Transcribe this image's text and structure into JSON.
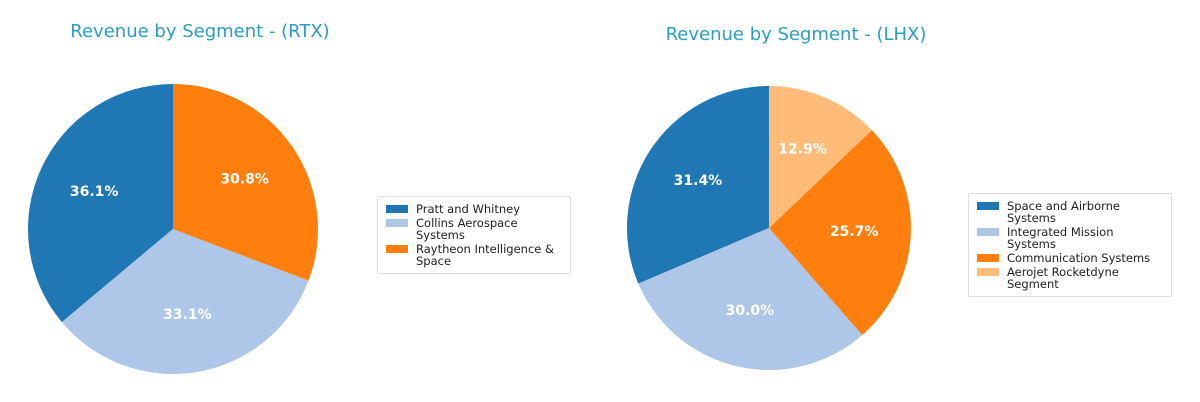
{
  "chart_data": [
    {
      "type": "pie",
      "title": "Revenue by Segment - (RTX)",
      "categories": [
        "Pratt and Whitney",
        "Collins Aerospace Systems",
        "Raytheon Intelligence & Space"
      ],
      "values": [
        36.1,
        33.1,
        30.8
      ],
      "value_labels": [
        "36.1%",
        "33.1%",
        "30.8%"
      ],
      "colors": [
        "#1f77b4",
        "#aec7e8",
        "#ff7f0e"
      ]
    },
    {
      "type": "pie",
      "title": "Revenue by Segment - (LHX)",
      "categories": [
        "Space and Airborne Systems",
        "Integrated Mission Systems",
        "Communication Systems",
        "Aerojet Rocketdyne Segment"
      ],
      "values": [
        31.4,
        30.0,
        25.7,
        12.9
      ],
      "value_labels": [
        "31.4%",
        "30.0%",
        "25.7%",
        "12.9%"
      ],
      "colors": [
        "#1f77b4",
        "#aec7e8",
        "#ff7f0e",
        "#ffbb78"
      ]
    }
  ]
}
